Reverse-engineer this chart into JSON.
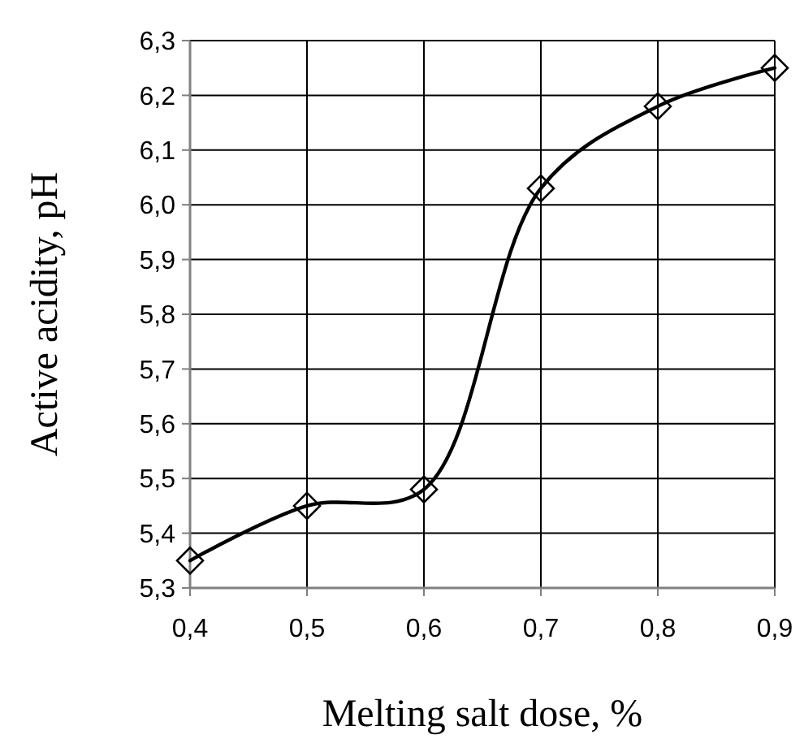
{
  "chart_data": {
    "type": "line",
    "xlabel": "Melting salt dose, %",
    "ylabel": "Active acidity, pH",
    "x": [
      0.4,
      0.5,
      0.6,
      0.7,
      0.8,
      0.9
    ],
    "series": [
      {
        "color": "#000000",
        "values": [
          5.35,
          5.45,
          5.48,
          6.03,
          6.18,
          6.25
        ]
      }
    ],
    "xlim": [
      0.4,
      0.9
    ],
    "ylim": [
      5.3,
      6.3
    ],
    "xticks": [
      {
        "value": 0.4,
        "label": "0,4"
      },
      {
        "value": 0.5,
        "label": "0,5"
      },
      {
        "value": 0.6,
        "label": "0,6"
      },
      {
        "value": 0.7,
        "label": "0,7"
      },
      {
        "value": 0.8,
        "label": "0,8"
      },
      {
        "value": 0.9,
        "label": "0,9"
      }
    ],
    "yticks": [
      {
        "value": 5.3,
        "label": "5,3"
      },
      {
        "value": 5.4,
        "label": "5,4"
      },
      {
        "value": 5.5,
        "label": "5,5"
      },
      {
        "value": 5.6,
        "label": "5,6"
      },
      {
        "value": 5.7,
        "label": "5,7"
      },
      {
        "value": 5.8,
        "label": "5,8"
      },
      {
        "value": 5.9,
        "label": "5,9"
      },
      {
        "value": 6.0,
        "label": "6,0"
      },
      {
        "value": 6.1,
        "label": "6,1"
      },
      {
        "value": 6.2,
        "label": "6,2"
      },
      {
        "value": 6.3,
        "label": "6,3"
      }
    ],
    "grid": true,
    "marker": "diamond",
    "line_style": "solid"
  }
}
